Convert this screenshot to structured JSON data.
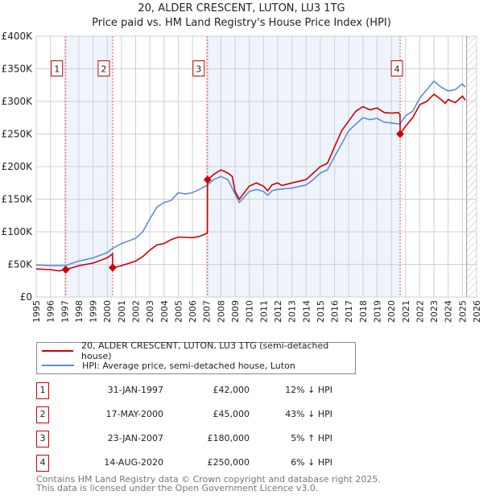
{
  "chart_data": {
    "type": "line",
    "title": "20, ALDER CRESCENT, LUTON, LU3 1TG",
    "subtitle": "Price paid vs. HM Land Registry's House Price Index (HPI)",
    "xlim": [
      1995,
      2026
    ],
    "ylim": [
      0,
      400000
    ],
    "x_ticks": [
      "1995",
      "1996",
      "1997",
      "1998",
      "1999",
      "2000",
      "2001",
      "2002",
      "2003",
      "2004",
      "2005",
      "2006",
      "2007",
      "2008",
      "2009",
      "2010",
      "2011",
      "2012",
      "2013",
      "2014",
      "2015",
      "2016",
      "2017",
      "2018",
      "2019",
      "2020",
      "2021",
      "2022",
      "2023",
      "2024",
      "2025",
      "2026"
    ],
    "y_ticks": [
      {
        "v": 0,
        "label": "£0"
      },
      {
        "v": 50000,
        "label": "£50K"
      },
      {
        "v": 100000,
        "label": "£100K"
      },
      {
        "v": 150000,
        "label": "£150K"
      },
      {
        "v": 200000,
        "label": "£200K"
      },
      {
        "v": 250000,
        "label": "£250K"
      },
      {
        "v": 300000,
        "label": "£300K"
      },
      {
        "v": 350000,
        "label": "£350K"
      },
      {
        "v": 400000,
        "label": "£400K"
      }
    ],
    "grid": true,
    "forecast_from": 2025.3,
    "series": [
      {
        "name": "20, ALDER CRESCENT, LUTON, LU3 1TG (semi-detached house)",
        "color": "#cc0000",
        "points": [
          [
            1995,
            43
          ],
          [
            1996,
            42
          ],
          [
            1996.6,
            40
          ],
          [
            1997.08,
            42
          ],
          [
            1998,
            48
          ],
          [
            1999,
            52
          ],
          [
            2000,
            60
          ],
          [
            2000.37,
            66
          ],
          [
            2000.38,
            45
          ],
          [
            2001,
            48
          ],
          [
            2002,
            55
          ],
          [
            2002.5,
            62
          ],
          [
            2003,
            72
          ],
          [
            2003.5,
            80
          ],
          [
            2004,
            82
          ],
          [
            2004.5,
            88
          ],
          [
            2005,
            92
          ],
          [
            2006,
            91
          ],
          [
            2006.5,
            93
          ],
          [
            2007.05,
            98
          ],
          [
            2007.06,
            180
          ],
          [
            2007.5,
            188
          ],
          [
            2008,
            195
          ],
          [
            2008.5,
            190
          ],
          [
            2008.8,
            185
          ],
          [
            2009,
            162
          ],
          [
            2009.3,
            150
          ],
          [
            2010,
            170
          ],
          [
            2010.5,
            175
          ],
          [
            2011,
            170
          ],
          [
            2011.3,
            163
          ],
          [
            2011.6,
            172
          ],
          [
            2012,
            175
          ],
          [
            2012.3,
            171
          ],
          [
            2013,
            175
          ],
          [
            2014,
            180
          ],
          [
            2014.5,
            190
          ],
          [
            2015,
            200
          ],
          [
            2015.5,
            205
          ],
          [
            2016,
            230
          ],
          [
            2016.5,
            255
          ],
          [
            2017,
            270
          ],
          [
            2017.5,
            285
          ],
          [
            2018,
            292
          ],
          [
            2018.5,
            287
          ],
          [
            2019,
            290
          ],
          [
            2019.5,
            283
          ],
          [
            2020,
            282
          ],
          [
            2020.5,
            283
          ],
          [
            2020.61,
            280
          ],
          [
            2020.62,
            250
          ],
          [
            2021,
            262
          ],
          [
            2021.5,
            275
          ],
          [
            2022,
            295
          ],
          [
            2022.5,
            300
          ],
          [
            2023,
            311
          ],
          [
            2023.5,
            303
          ],
          [
            2023.8,
            297
          ],
          [
            2024,
            303
          ],
          [
            2024.5,
            298
          ],
          [
            2025,
            308
          ],
          [
            2025.2,
            302
          ]
        ]
      },
      {
        "name": "HPI: Average price, semi-detached house, Luton",
        "color": "#5b8fd4",
        "points": [
          [
            1995,
            49
          ],
          [
            1996,
            48
          ],
          [
            1997,
            48
          ],
          [
            1998,
            55
          ],
          [
            1999,
            60
          ],
          [
            2000,
            68
          ],
          [
            2000.4,
            75
          ],
          [
            2001,
            82
          ],
          [
            2002,
            90
          ],
          [
            2002.5,
            100
          ],
          [
            2003,
            120
          ],
          [
            2003.5,
            138
          ],
          [
            2004,
            145
          ],
          [
            2004.5,
            148
          ],
          [
            2005,
            160
          ],
          [
            2005.5,
            158
          ],
          [
            2006,
            160
          ],
          [
            2006.5,
            165
          ],
          [
            2007,
            171
          ],
          [
            2007.5,
            180
          ],
          [
            2008,
            185
          ],
          [
            2008.5,
            180
          ],
          [
            2009,
            158
          ],
          [
            2009.3,
            145
          ],
          [
            2010,
            162
          ],
          [
            2010.5,
            165
          ],
          [
            2011,
            162
          ],
          [
            2011.3,
            156
          ],
          [
            2011.6,
            163
          ],
          [
            2012,
            165
          ],
          [
            2013,
            167
          ],
          [
            2014,
            172
          ],
          [
            2014.5,
            180
          ],
          [
            2015,
            190
          ],
          [
            2015.5,
            195
          ],
          [
            2016,
            215
          ],
          [
            2016.5,
            235
          ],
          [
            2017,
            255
          ],
          [
            2017.5,
            265
          ],
          [
            2018,
            275
          ],
          [
            2018.5,
            272
          ],
          [
            2019,
            274
          ],
          [
            2019.5,
            268
          ],
          [
            2020,
            267
          ],
          [
            2020.6,
            265
          ],
          [
            2021,
            278
          ],
          [
            2021.5,
            285
          ],
          [
            2022,
            305
          ],
          [
            2022.5,
            318
          ],
          [
            2023,
            331
          ],
          [
            2023.5,
            322
          ],
          [
            2024,
            316
          ],
          [
            2024.5,
            318
          ],
          [
            2025,
            327
          ],
          [
            2025.2,
            322
          ]
        ]
      }
    ],
    "sales": [
      {
        "id": "1",
        "x": 1997.08,
        "price": 42000,
        "date": "31-JAN-1997",
        "price_label": "£42,000",
        "hpi": "12% ↓ HPI"
      },
      {
        "id": "2",
        "x": 2000.38,
        "price": 45000,
        "date": "17-MAY-2000",
        "price_label": "£45,000",
        "hpi": "43% ↓ HPI"
      },
      {
        "id": "3",
        "x": 2007.06,
        "price": 180000,
        "date": "23-JAN-2007",
        "price_label": "£180,000",
        "hpi": "5% ↑ HPI"
      },
      {
        "id": "4",
        "x": 2020.62,
        "price": 250000,
        "date": "14-AUG-2020",
        "price_label": "£250,000",
        "hpi": "6% ↓ HPI"
      }
    ],
    "legend": {
      "placement": "bottom"
    }
  },
  "legend": {
    "property": "20, ALDER CRESCENT, LUTON, LU3 1TG (semi-detached house)",
    "hpi": "HPI: Average price, semi-detached house, Luton"
  },
  "footer": {
    "line1": "Contains HM Land Registry data © Crown copyright and database right 2025.",
    "line2": "This data is licensed under the Open Government Licence v3.0."
  }
}
